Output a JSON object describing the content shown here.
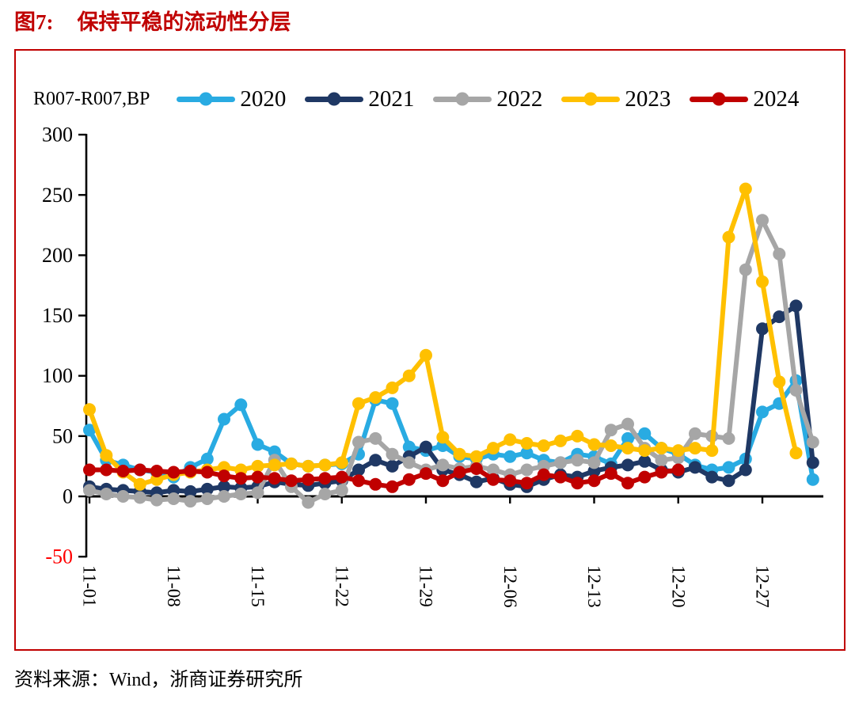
{
  "title": {
    "label": "图7:",
    "text": "保持平稳的流动性分层"
  },
  "source": {
    "text": "资料来源：Wind，浙商证券研究所"
  },
  "chart": {
    "unit_label": "R007-R007,BP",
    "colors": {
      "title_red": "#C00000",
      "frame_border": "#C00000",
      "axis_black": "#000000",
      "negative_label": "#FF0000"
    }
  },
  "chart_data": {
    "type": "line",
    "title": "保持平稳的流动性分层",
    "ylabel": "R007-R007,BP",
    "ylim": [
      -50,
      300
    ],
    "y_ticks": [
      300,
      250,
      200,
      150,
      100,
      50,
      0,
      -50
    ],
    "x_tick_labels": [
      "11-01",
      "11-08",
      "11-15",
      "11-22",
      "11-29",
      "12-06",
      "12-13",
      "12-20",
      "12-27"
    ],
    "points_per_tick": 5,
    "grid": false,
    "legend_position": "top",
    "x": [
      "11-01",
      "11-02",
      "11-04",
      "11-05",
      "11-07",
      "11-08",
      "11-09",
      "11-11",
      "11-12",
      "11-14",
      "11-15",
      "11-16",
      "11-18",
      "11-19",
      "11-21",
      "11-22",
      "11-23",
      "11-25",
      "11-26",
      "11-28",
      "11-29",
      "11-30",
      "12-02",
      "12-03",
      "12-05",
      "12-06",
      "12-07",
      "12-09",
      "12-10",
      "12-12",
      "12-13",
      "12-14",
      "12-16",
      "12-17",
      "12-19",
      "12-20",
      "12-21",
      "12-23",
      "12-24",
      "12-26",
      "12-27",
      "12-28",
      "12-30",
      "12-31"
    ],
    "series": [
      {
        "name": "2020",
        "color": "#29ABE2",
        "values": [
          55,
          30,
          26,
          22,
          20,
          16,
          24,
          31,
          64,
          76,
          43,
          37,
          27,
          25,
          26,
          27,
          35,
          80,
          77,
          41,
          38,
          42,
          33,
          31,
          35,
          33,
          36,
          30,
          28,
          35,
          33,
          27,
          48,
          52,
          40,
          35,
          26,
          22,
          24,
          31,
          70,
          77,
          96,
          14
        ]
      },
      {
        "name": "2021",
        "color": "#1F3864",
        "values": [
          8,
          6,
          5,
          4,
          3,
          5,
          4,
          6,
          8,
          7,
          8,
          12,
          10,
          9,
          11,
          13,
          22,
          30,
          25,
          33,
          41,
          22,
          18,
          12,
          15,
          10,
          8,
          14,
          18,
          16,
          21,
          24,
          26,
          29,
          22,
          20,
          24,
          16,
          13,
          22,
          139,
          149,
          158,
          28
        ]
      },
      {
        "name": "2022",
        "color": "#A6A6A6",
        "values": [
          5,
          2,
          0,
          -1,
          -3,
          -2,
          -4,
          -2,
          0,
          2,
          3,
          30,
          8,
          -5,
          2,
          5,
          45,
          48,
          35,
          28,
          22,
          26,
          23,
          25,
          22,
          18,
          22,
          25,
          28,
          30,
          28,
          55,
          60,
          40,
          30,
          32,
          52,
          50,
          48,
          188,
          229,
          201,
          88,
          45
        ]
      },
      {
        "name": "2023",
        "color": "#FFC000",
        "values": [
          72,
          34,
          20,
          10,
          14,
          18,
          20,
          22,
          24,
          22,
          25,
          26,
          27,
          25,
          26,
          28,
          77,
          82,
          90,
          100,
          117,
          49,
          35,
          33,
          40,
          47,
          44,
          42,
          46,
          50,
          43,
          42,
          40,
          38,
          40,
          38,
          40,
          38,
          215,
          255,
          178,
          95,
          36,
          null
        ]
      },
      {
        "name": "2024",
        "color": "#C00000",
        "values": [
          22,
          22,
          21,
          22,
          21,
          20,
          21,
          20,
          17,
          15,
          16,
          15,
          13,
          14,
          15,
          16,
          13,
          10,
          8,
          14,
          19,
          13,
          20,
          23,
          14,
          13,
          11,
          18,
          16,
          11,
          13,
          19,
          11,
          16,
          20,
          22,
          null,
          null,
          null,
          null,
          null,
          null,
          null,
          null
        ]
      }
    ]
  }
}
